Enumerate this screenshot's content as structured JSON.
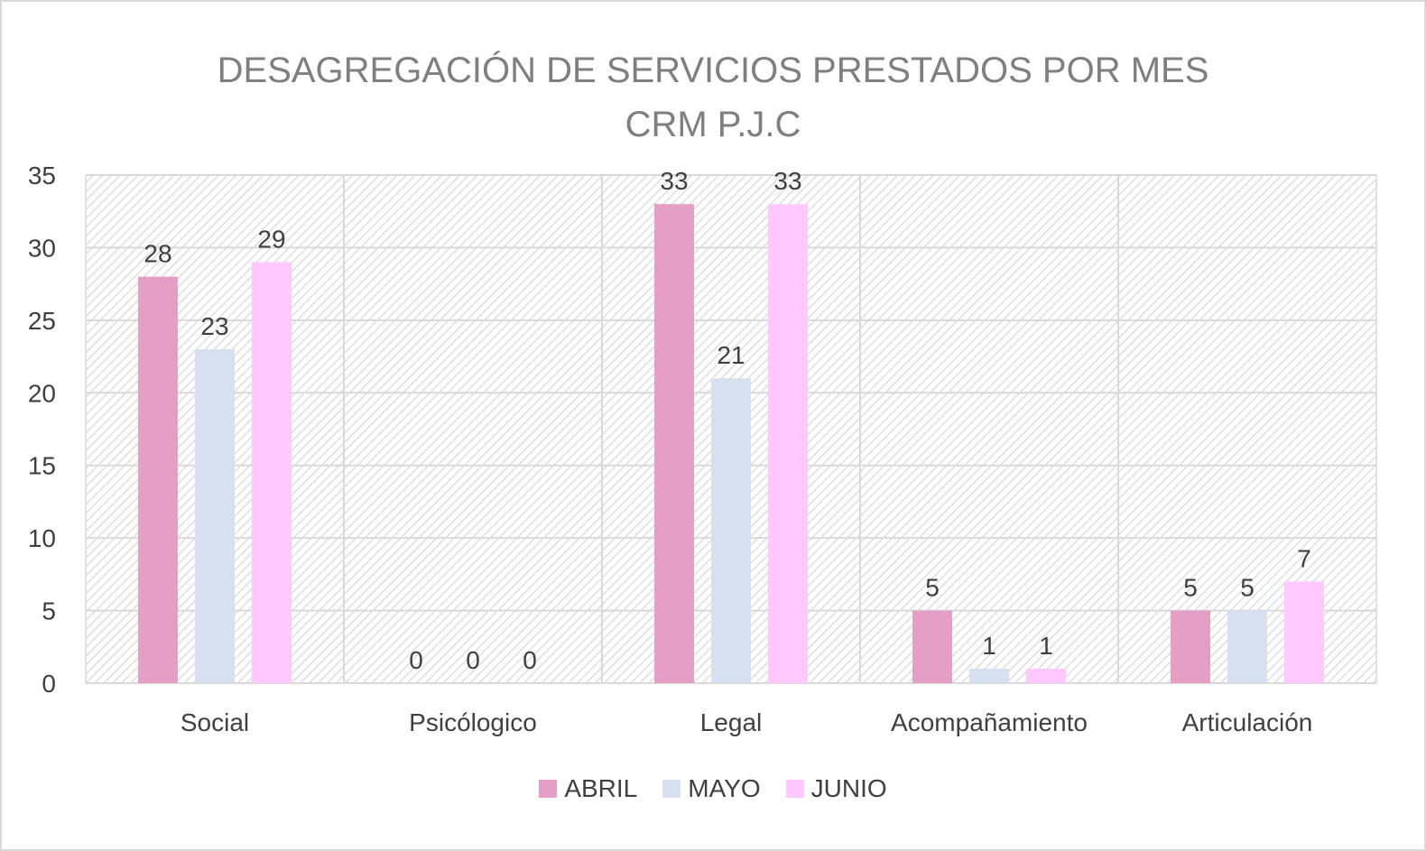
{
  "chart_data": {
    "type": "bar",
    "title": "DESAGREGACIÓN DE SERVICIOS PRESTADOS POR MES",
    "subtitle": "CRM P.J.C",
    "xlabel": "",
    "ylabel": "",
    "ylim": [
      0,
      35
    ],
    "yticks": [
      "0",
      "5",
      "10",
      "15",
      "20",
      "25",
      "30",
      "35"
    ],
    "grid": true,
    "legend_position": "bottom",
    "categories": [
      "Social",
      "Psicólogico",
      "Legal",
      "Acompañamiento",
      "Articulación"
    ],
    "series": [
      {
        "name": "ABRIL",
        "color": "#e59ec4",
        "values": [
          28,
          0,
          33,
          5,
          5
        ]
      },
      {
        "name": "MAYO",
        "color": "#d6e0ee",
        "values": [
          23,
          0,
          21,
          1,
          5
        ]
      },
      {
        "name": "JUNIO",
        "color": "#ffc9ff",
        "values": [
          29,
          0,
          33,
          1,
          7
        ]
      }
    ]
  }
}
